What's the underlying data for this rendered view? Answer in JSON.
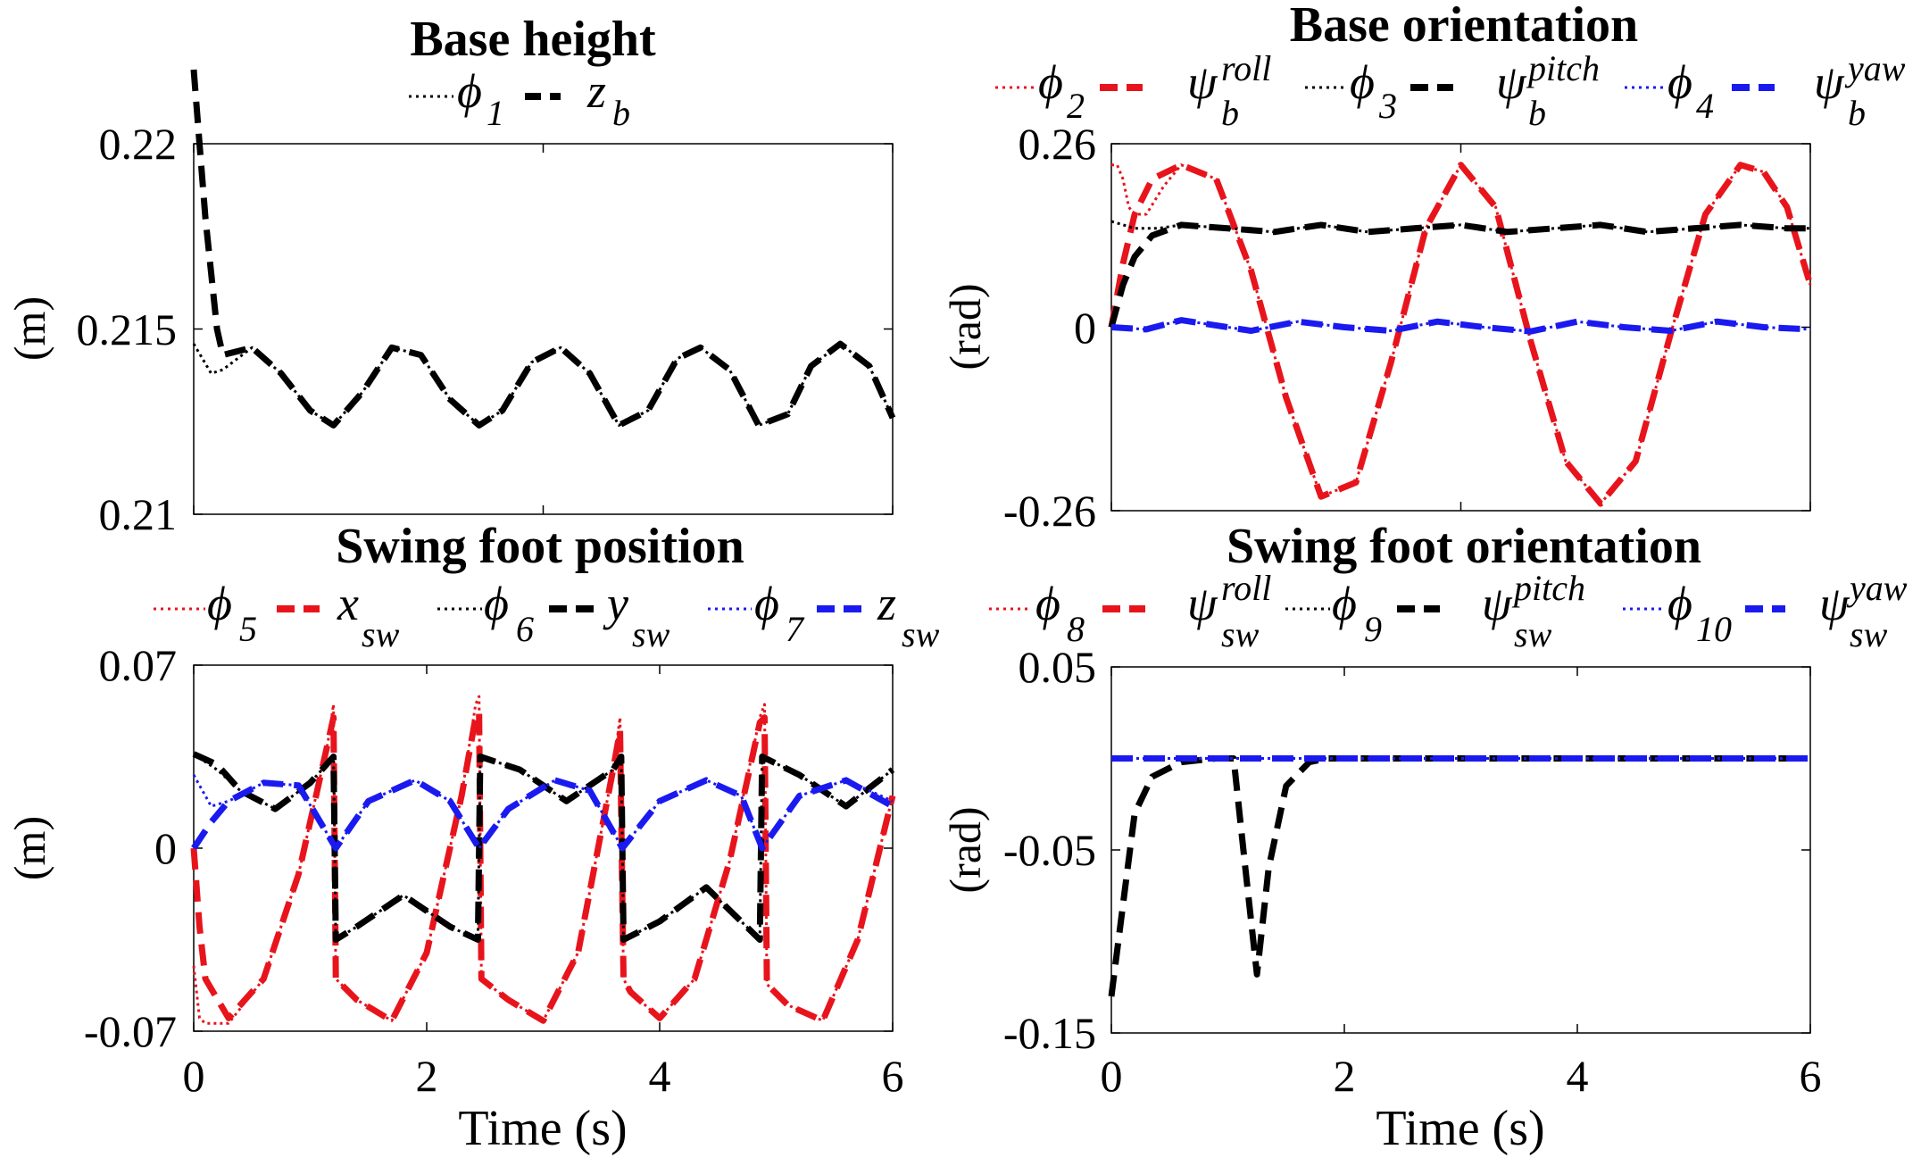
{
  "chart_data": [
    {
      "type": "line",
      "title": "Base height",
      "xlabel": "",
      "ylabel": "(m)",
      "xlim": [
        0,
        6
      ],
      "ylim": [
        0.21,
        0.22
      ],
      "xticks": [
        "",
        "",
        ""
      ],
      "yticks": [
        "0.22",
        "0.215",
        "0.21"
      ],
      "legend": [
        "ϕ",
        "1",
        "z",
        "b"
      ],
      "series": [
        {
          "name": "ϕ1",
          "color": "#000000",
          "style": "dotted",
          "x": [
            0,
            0.15,
            0.25,
            0.5,
            0.75,
            1.0,
            1.2,
            1.45,
            1.7,
            1.95,
            2.2,
            2.45,
            2.65,
            2.9,
            3.15,
            3.4,
            3.65,
            3.9,
            4.15,
            4.35,
            4.6,
            4.85,
            5.1,
            5.3,
            5.55,
            5.8,
            6.0
          ],
          "y": [
            0.2146,
            0.2138,
            0.2139,
            0.2145,
            0.2138,
            0.2128,
            0.2124,
            0.2133,
            0.2145,
            0.2143,
            0.2131,
            0.2124,
            0.2128,
            0.2141,
            0.2145,
            0.2138,
            0.2124,
            0.2128,
            0.2142,
            0.2145,
            0.2139,
            0.2124,
            0.2127,
            0.214,
            0.2146,
            0.214,
            0.2126
          ]
        },
        {
          "name": "zb",
          "color": "#000000",
          "style": "dashed",
          "x": [
            0,
            0.05,
            0.1,
            0.15,
            0.2,
            0.25,
            0.5,
            0.75,
            1.0,
            1.2,
            1.45,
            1.7,
            1.95,
            2.2,
            2.45,
            2.65,
            2.9,
            3.15,
            3.4,
            3.65,
            3.9,
            4.15,
            4.35,
            4.6,
            4.85,
            5.1,
            5.3,
            5.55,
            5.8,
            6.0
          ],
          "y": [
            0.222,
            0.22,
            0.218,
            0.2165,
            0.215,
            0.2143,
            0.2145,
            0.2138,
            0.2128,
            0.2124,
            0.2133,
            0.2145,
            0.2143,
            0.2131,
            0.2124,
            0.2128,
            0.2141,
            0.2145,
            0.2138,
            0.2124,
            0.2128,
            0.2142,
            0.2145,
            0.2139,
            0.2124,
            0.2127,
            0.214,
            0.2146,
            0.214,
            0.2126
          ]
        }
      ]
    },
    {
      "type": "line",
      "title": "Base orientation",
      "xlabel": "",
      "ylabel": "(rad)",
      "xlim": [
        0,
        6
      ],
      "ylim": [
        -0.26,
        0.26
      ],
      "xticks": [
        "",
        "",
        ""
      ],
      "yticks": [
        "0.26",
        "0",
        "-0.26"
      ],
      "legend": [
        "ϕ",
        "2",
        "ψ",
        "b",
        "roll",
        "ϕ",
        "3",
        "ψ",
        "b",
        "pitch",
        "ϕ",
        "4",
        "ψ",
        "b",
        "yaw"
      ],
      "series": [
        {
          "name": "ϕ2",
          "color": "#e8141c",
          "style": "dotted",
          "x": [
            0,
            0.05,
            0.1,
            0.15,
            0.2,
            0.3,
            0.45,
            0.6,
            0.9,
            1.2,
            1.5,
            1.8,
            2.1,
            2.4,
            2.7,
            3.0,
            3.3,
            3.6,
            3.9,
            4.2,
            4.5,
            4.8,
            5.1,
            5.4,
            5.6,
            5.8,
            6.0
          ],
          "y": [
            0.23,
            0.23,
            0.21,
            0.17,
            0.16,
            0.16,
            0.2,
            0.23,
            0.21,
            0.08,
            -0.1,
            -0.24,
            -0.22,
            -0.05,
            0.14,
            0.23,
            0.17,
            -0.02,
            -0.19,
            -0.25,
            -0.19,
            -0.01,
            0.16,
            0.23,
            0.22,
            0.17,
            0.06
          ]
        },
        {
          "name": "ψb roll",
          "color": "#e8141c",
          "style": "dashed",
          "x": [
            0,
            0.1,
            0.2,
            0.35,
            0.6,
            0.9,
            1.2,
            1.5,
            1.8,
            2.1,
            2.4,
            2.7,
            3.0,
            3.3,
            3.6,
            3.9,
            4.2,
            4.5,
            4.8,
            5.1,
            5.4,
            5.6,
            5.8,
            6.0
          ],
          "y": [
            0.0,
            0.09,
            0.16,
            0.21,
            0.23,
            0.21,
            0.08,
            -0.1,
            -0.24,
            -0.22,
            -0.05,
            0.14,
            0.23,
            0.17,
            -0.02,
            -0.19,
            -0.25,
            -0.19,
            -0.01,
            0.16,
            0.23,
            0.22,
            0.17,
            0.06
          ]
        },
        {
          "name": "ϕ3",
          "color": "#000000",
          "style": "dotted",
          "x": [
            0,
            0.2,
            0.4,
            0.6,
            1.0,
            1.4,
            1.8,
            2.2,
            2.6,
            3.0,
            3.4,
            3.8,
            4.2,
            4.6,
            5.0,
            5.4,
            5.8,
            6.0
          ],
          "y": [
            0.15,
            0.14,
            0.14,
            0.145,
            0.14,
            0.135,
            0.145,
            0.135,
            0.14,
            0.145,
            0.135,
            0.14,
            0.145,
            0.135,
            0.14,
            0.145,
            0.14,
            0.14
          ]
        },
        {
          "name": "ψb pitch",
          "color": "#000000",
          "style": "dashed",
          "x": [
            0,
            0.1,
            0.2,
            0.35,
            0.6,
            1.0,
            1.4,
            1.8,
            2.2,
            2.6,
            3.0,
            3.4,
            3.8,
            4.2,
            4.6,
            5.0,
            5.4,
            5.8,
            6.0
          ],
          "y": [
            0.0,
            0.06,
            0.1,
            0.13,
            0.145,
            0.14,
            0.135,
            0.145,
            0.135,
            0.14,
            0.145,
            0.135,
            0.14,
            0.145,
            0.135,
            0.14,
            0.145,
            0.14,
            0.14
          ]
        },
        {
          "name": "ϕ4",
          "color": "#1a1af0",
          "style": "dotted",
          "x": [
            0,
            0.3,
            0.6,
            1.0,
            1.2,
            1.6,
            2.0,
            2.4,
            2.8,
            3.2,
            3.6,
            4.0,
            4.4,
            4.8,
            5.2,
            5.6,
            6.0
          ],
          "y": [
            0.0,
            -0.003,
            0.01,
            0.0,
            -0.005,
            0.008,
            0.0,
            -0.005,
            0.008,
            0.0,
            -0.006,
            0.008,
            0.0,
            -0.005,
            0.008,
            0.0,
            -0.003
          ]
        },
        {
          "name": "ψb yaw",
          "color": "#1a1af0",
          "style": "dashed",
          "x": [
            0,
            0.3,
            0.6,
            1.0,
            1.2,
            1.6,
            2.0,
            2.4,
            2.8,
            3.2,
            3.6,
            4.0,
            4.4,
            4.8,
            5.2,
            5.6,
            6.0
          ],
          "y": [
            0.0,
            -0.003,
            0.01,
            0.0,
            -0.005,
            0.008,
            0.0,
            -0.005,
            0.008,
            0.0,
            -0.006,
            0.008,
            0.0,
            -0.005,
            0.008,
            0.0,
            -0.003
          ]
        }
      ]
    },
    {
      "type": "line",
      "title": "Swing foot position",
      "xlabel": "Time (s)",
      "ylabel": "(m)",
      "xlim": [
        0,
        6
      ],
      "ylim": [
        -0.07,
        0.07
      ],
      "xticks": [
        "0",
        "2",
        "4",
        "6"
      ],
      "yticks": [
        "0.07",
        "0",
        "-0.07"
      ],
      "legend": [
        "ϕ",
        "5",
        "x",
        "sw",
        "ϕ",
        "6",
        "y",
        "sw",
        "ϕ",
        "7",
        "z",
        "sw"
      ],
      "series": [
        {
          "name": "ϕ5",
          "color": "#e8141c",
          "style": "dotted",
          "x": [
            0,
            0.05,
            0.1,
            0.3,
            0.6,
            0.9,
            1.15,
            1.2,
            1.22,
            1.4,
            1.7,
            2.0,
            2.3,
            2.42,
            2.45,
            2.47,
            2.7,
            3.0,
            3.3,
            3.6,
            3.66,
            3.69,
            3.75,
            4.0,
            4.3,
            4.6,
            4.86,
            4.9,
            4.92,
            5.1,
            5.4,
            5.7,
            6.0
          ],
          "y": [
            -0.045,
            -0.065,
            -0.067,
            -0.067,
            -0.05,
            -0.01,
            0.04,
            0.055,
            -0.05,
            -0.058,
            -0.066,
            -0.04,
            0.02,
            0.055,
            0.058,
            -0.05,
            -0.058,
            -0.066,
            -0.04,
            0.03,
            0.05,
            -0.05,
            -0.055,
            -0.065,
            -0.05,
            -0.005,
            0.05,
            0.055,
            -0.052,
            -0.06,
            -0.066,
            -0.035,
            0.02
          ]
        },
        {
          "name": "xsw",
          "color": "#e8141c",
          "style": "dashed",
          "x": [
            0,
            0.05,
            0.1,
            0.3,
            0.6,
            0.9,
            1.15,
            1.2,
            1.22,
            1.4,
            1.7,
            2.0,
            2.3,
            2.42,
            2.45,
            2.47,
            2.7,
            3.0,
            3.3,
            3.6,
            3.66,
            3.69,
            3.75,
            4.0,
            4.3,
            4.6,
            4.86,
            4.9,
            4.92,
            5.1,
            5.4,
            5.7,
            6.0
          ],
          "y": [
            0.0,
            -0.03,
            -0.05,
            -0.065,
            -0.05,
            -0.01,
            0.04,
            0.05,
            -0.05,
            -0.058,
            -0.066,
            -0.04,
            0.02,
            0.05,
            0.052,
            -0.05,
            -0.058,
            -0.066,
            -0.04,
            0.03,
            0.045,
            -0.05,
            -0.055,
            -0.065,
            -0.05,
            -0.005,
            0.048,
            0.05,
            -0.052,
            -0.06,
            -0.066,
            -0.035,
            0.02
          ]
        },
        {
          "name": "ϕ6",
          "color": "#000000",
          "style": "dotted",
          "x": [
            0,
            0.2,
            0.4,
            0.7,
            1.0,
            1.2,
            1.22,
            1.4,
            1.8,
            2.2,
            2.44,
            2.46,
            2.8,
            3.2,
            3.6,
            3.67,
            3.69,
            4.0,
            4.4,
            4.86,
            4.88,
            5.2,
            5.6,
            6.0
          ],
          "y": [
            0.036,
            0.03,
            0.022,
            0.015,
            0.025,
            0.035,
            -0.035,
            -0.03,
            -0.018,
            -0.03,
            -0.035,
            0.035,
            0.03,
            0.018,
            0.03,
            0.035,
            -0.035,
            -0.028,
            -0.015,
            -0.035,
            0.035,
            0.028,
            0.016,
            0.03
          ]
        },
        {
          "name": "ysw",
          "color": "#000000",
          "style": "dashed",
          "x": [
            0,
            0.2,
            0.4,
            0.7,
            1.0,
            1.2,
            1.22,
            1.4,
            1.8,
            2.2,
            2.44,
            2.46,
            2.8,
            3.2,
            3.6,
            3.67,
            3.69,
            4.0,
            4.4,
            4.86,
            4.88,
            5.2,
            5.6,
            6.0
          ],
          "y": [
            0.036,
            0.032,
            0.022,
            0.015,
            0.025,
            0.035,
            -0.035,
            -0.03,
            -0.018,
            -0.03,
            -0.035,
            0.035,
            0.03,
            0.018,
            0.03,
            0.035,
            -0.035,
            -0.028,
            -0.015,
            -0.035,
            0.035,
            0.028,
            0.016,
            0.03
          ]
        },
        {
          "name": "ϕ7",
          "color": "#1a1af0",
          "style": "dotted",
          "x": [
            0,
            0.15,
            0.3,
            0.6,
            0.9,
            1.22,
            1.5,
            1.9,
            2.2,
            2.45,
            2.7,
            3.1,
            3.4,
            3.68,
            4.0,
            4.4,
            4.7,
            4.88,
            5.2,
            5.6,
            6.0
          ],
          "y": [
            0.028,
            0.016,
            0.018,
            0.025,
            0.024,
            0.0,
            0.018,
            0.026,
            0.018,
            0.0,
            0.015,
            0.026,
            0.022,
            0.0,
            0.018,
            0.026,
            0.02,
            0.0,
            0.02,
            0.026,
            0.018
          ]
        },
        {
          "name": "zsw",
          "color": "#1a1af0",
          "style": "dashed",
          "x": [
            0,
            0.15,
            0.3,
            0.6,
            0.9,
            1.22,
            1.5,
            1.9,
            2.2,
            2.45,
            2.7,
            3.1,
            3.4,
            3.68,
            4.0,
            4.4,
            4.7,
            4.88,
            5.2,
            5.6,
            6.0
          ],
          "y": [
            0.0,
            0.01,
            0.018,
            0.025,
            0.024,
            0.0,
            0.018,
            0.026,
            0.018,
            0.0,
            0.015,
            0.026,
            0.022,
            0.0,
            0.018,
            0.026,
            0.02,
            0.0,
            0.02,
            0.026,
            0.016
          ]
        }
      ]
    },
    {
      "type": "line",
      "title": "Swing foot orientation",
      "xlabel": "Time (s)",
      "ylabel": "(rad)",
      "xlim": [
        0,
        6
      ],
      "ylim": [
        -0.15,
        0.05
      ],
      "xticks": [
        "0",
        "2",
        "4",
        "6"
      ],
      "yticks": [
        "0.05",
        "-0.05",
        "-0.15"
      ],
      "legend": [
        "ϕ",
        "8",
        "ψ",
        "sw",
        "roll",
        "ϕ",
        "9",
        "ψ",
        "sw",
        "pitch",
        "ϕ",
        "10",
        "ψ",
        "sw",
        "yaw"
      ],
      "series": [
        {
          "name": "ϕ8",
          "color": "#e8141c",
          "style": "dotted",
          "x": [
            0,
            6.0
          ],
          "y": [
            0.0,
            0.0
          ]
        },
        {
          "name": "ψsw roll",
          "color": "#e8141c",
          "style": "dashed",
          "x": [
            0,
            6.0
          ],
          "y": [
            0.0,
            0.0
          ]
        },
        {
          "name": "ϕ9",
          "color": "#000000",
          "style": "dotted",
          "x": [
            0,
            6.0
          ],
          "y": [
            0.0,
            0.0
          ]
        },
        {
          "name": "ψsw pitch",
          "color": "#000000",
          "style": "dashed",
          "x": [
            0,
            0.1,
            0.2,
            0.35,
            0.6,
            0.9,
            1.05,
            1.15,
            1.25,
            1.35,
            1.5,
            1.7,
            1.85,
            6.0
          ],
          "y": [
            -0.13,
            -0.08,
            -0.03,
            -0.01,
            -0.002,
            0.0,
            0.0,
            -0.06,
            -0.118,
            -0.06,
            -0.015,
            -0.002,
            0.0,
            0.0
          ]
        },
        {
          "name": "ϕ10",
          "color": "#1a1af0",
          "style": "dotted",
          "x": [
            0,
            6.0
          ],
          "y": [
            0.0,
            0.0
          ]
        },
        {
          "name": "ψsw yaw",
          "color": "#1a1af0",
          "style": "dashed",
          "x": [
            0,
            6.0
          ],
          "y": [
            0.0,
            0.0
          ]
        }
      ]
    }
  ]
}
